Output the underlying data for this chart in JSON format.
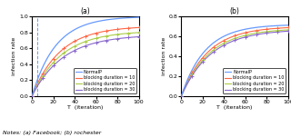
{
  "title_a": "(a)",
  "title_b": "(b)",
  "xlabel": "T  (iteration)",
  "ylabel": "infection rate",
  "notes": "Notes: (a) Facebook; (b) rochester",
  "xlim": [
    0,
    100
  ],
  "ylim_a": [
    0,
    1.0
  ],
  "ylim_b": [
    0,
    0.8
  ],
  "yticks_a": [
    0,
    0.2,
    0.4,
    0.6,
    0.8,
    1.0
  ],
  "yticks_b": [
    0,
    0.2,
    0.4,
    0.6,
    0.8
  ],
  "xticks": [
    0,
    20,
    40,
    60,
    80,
    100
  ],
  "legend_labels": [
    "NormalP",
    "blocking duration = 10",
    "blocking duration = 20",
    "blocking duration = 30"
  ],
  "colors": [
    "#6699ff",
    "#ff6644",
    "#aacc44",
    "#8866cc"
  ],
  "vline_x_a": 5,
  "curves_a": {
    "NormalP": {
      "a": 1.0,
      "b": 0.045
    },
    "bd10": {
      "a": 0.88,
      "b": 0.038
    },
    "bd20": {
      "a": 0.82,
      "b": 0.036
    },
    "bd30": {
      "a": 0.77,
      "b": 0.034
    }
  },
  "curves_b": {
    "NormalP": {
      "a": 0.72,
      "b": 0.045
    },
    "bd10": {
      "a": 0.7,
      "b": 0.04
    },
    "bd20": {
      "a": 0.68,
      "b": 0.038
    },
    "bd30": {
      "a": 0.67,
      "b": 0.036
    }
  }
}
